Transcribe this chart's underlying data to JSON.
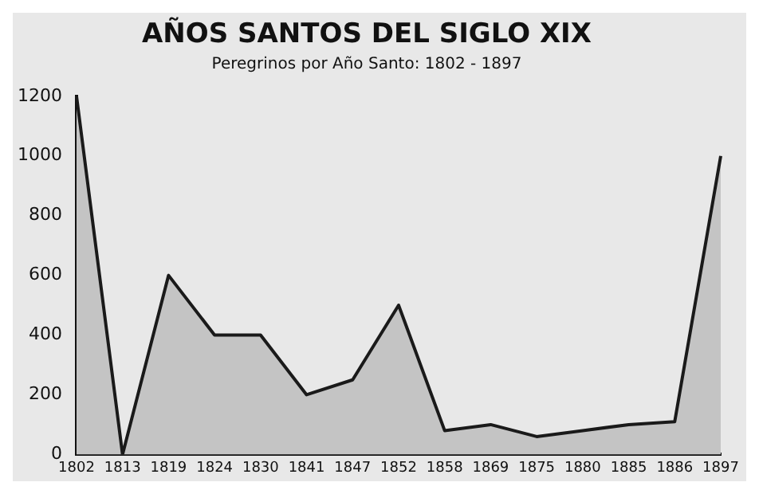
{
  "chart_data": {
    "type": "area",
    "title": "AÑOS SANTOS DEL SIGLO XIX",
    "subtitle": "Peregrinos por Año Santo: 1802 - 1897",
    "categories": [
      "1802",
      "1813",
      "1819",
      "1824",
      "1830",
      "1841",
      "1847",
      "1852",
      "1858",
      "1869",
      "1875",
      "1880",
      "1885",
      "1886",
      "1897"
    ],
    "series": [
      {
        "color": "#c4c4c4",
        "values": [
          1200,
          0,
          600,
          400,
          400,
          200,
          250,
          500,
          80,
          100,
          60,
          80,
          100,
          110,
          1000
        ]
      }
    ],
    "ylim": [
      0,
      1200
    ],
    "yticks": [
      0,
      200,
      400,
      600,
      800,
      1000,
      1200
    ],
    "grid": false,
    "legend": false
  }
}
